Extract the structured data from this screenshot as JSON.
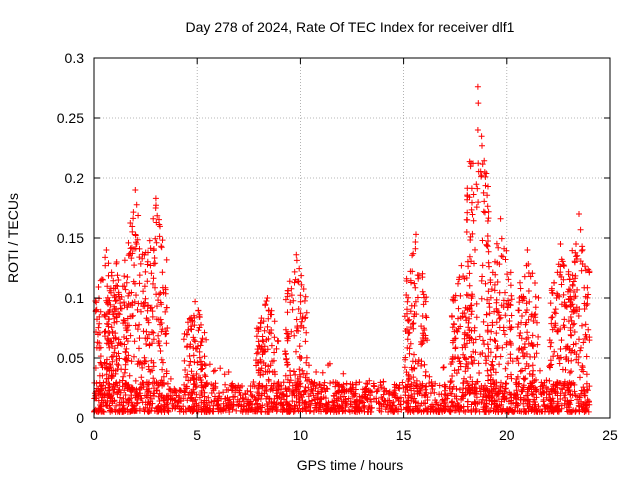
{
  "chart_data": {
    "type": "scatter",
    "title": "Day 278 of 2024, Rate Of TEC Index for receiver dlf1",
    "xlabel": "GPS time / hours",
    "ylabel": "ROTI / TECUs",
    "xlim": [
      0,
      25
    ],
    "ylim": [
      0,
      0.3
    ],
    "xticks": [
      "0",
      "5",
      "10",
      "15",
      "20",
      "25"
    ],
    "yticks": [
      "0",
      "0.05",
      "0.1",
      "0.15",
      "0.2",
      "0.25",
      "0.3"
    ],
    "grid": true,
    "marker": "+",
    "series_color": "#ff0000",
    "points_description": "dense band of ROTI values mostly 0.005-0.03 TECU/s over 0-24 h, with spikes",
    "baseline_range": [
      0.005,
      0.03
    ],
    "time_range": [
      0,
      24
    ],
    "peaks": [
      {
        "x": 0.6,
        "y": 0.14
      },
      {
        "x": 1.1,
        "y": 0.13
      },
      {
        "x": 2.0,
        "y": 0.19
      },
      {
        "x": 3.0,
        "y": 0.183
      },
      {
        "x": 4.9,
        "y": 0.097
      },
      {
        "x": 8.4,
        "y": 0.1
      },
      {
        "x": 9.8,
        "y": 0.136
      },
      {
        "x": 15.6,
        "y": 0.153
      },
      {
        "x": 17.8,
        "y": 0.127
      },
      {
        "x": 18.6,
        "y": 0.276
      },
      {
        "x": 19.7,
        "y": 0.166
      },
      {
        "x": 21.0,
        "y": 0.14
      },
      {
        "x": 22.6,
        "y": 0.145
      },
      {
        "x": 23.5,
        "y": 0.17
      }
    ]
  }
}
